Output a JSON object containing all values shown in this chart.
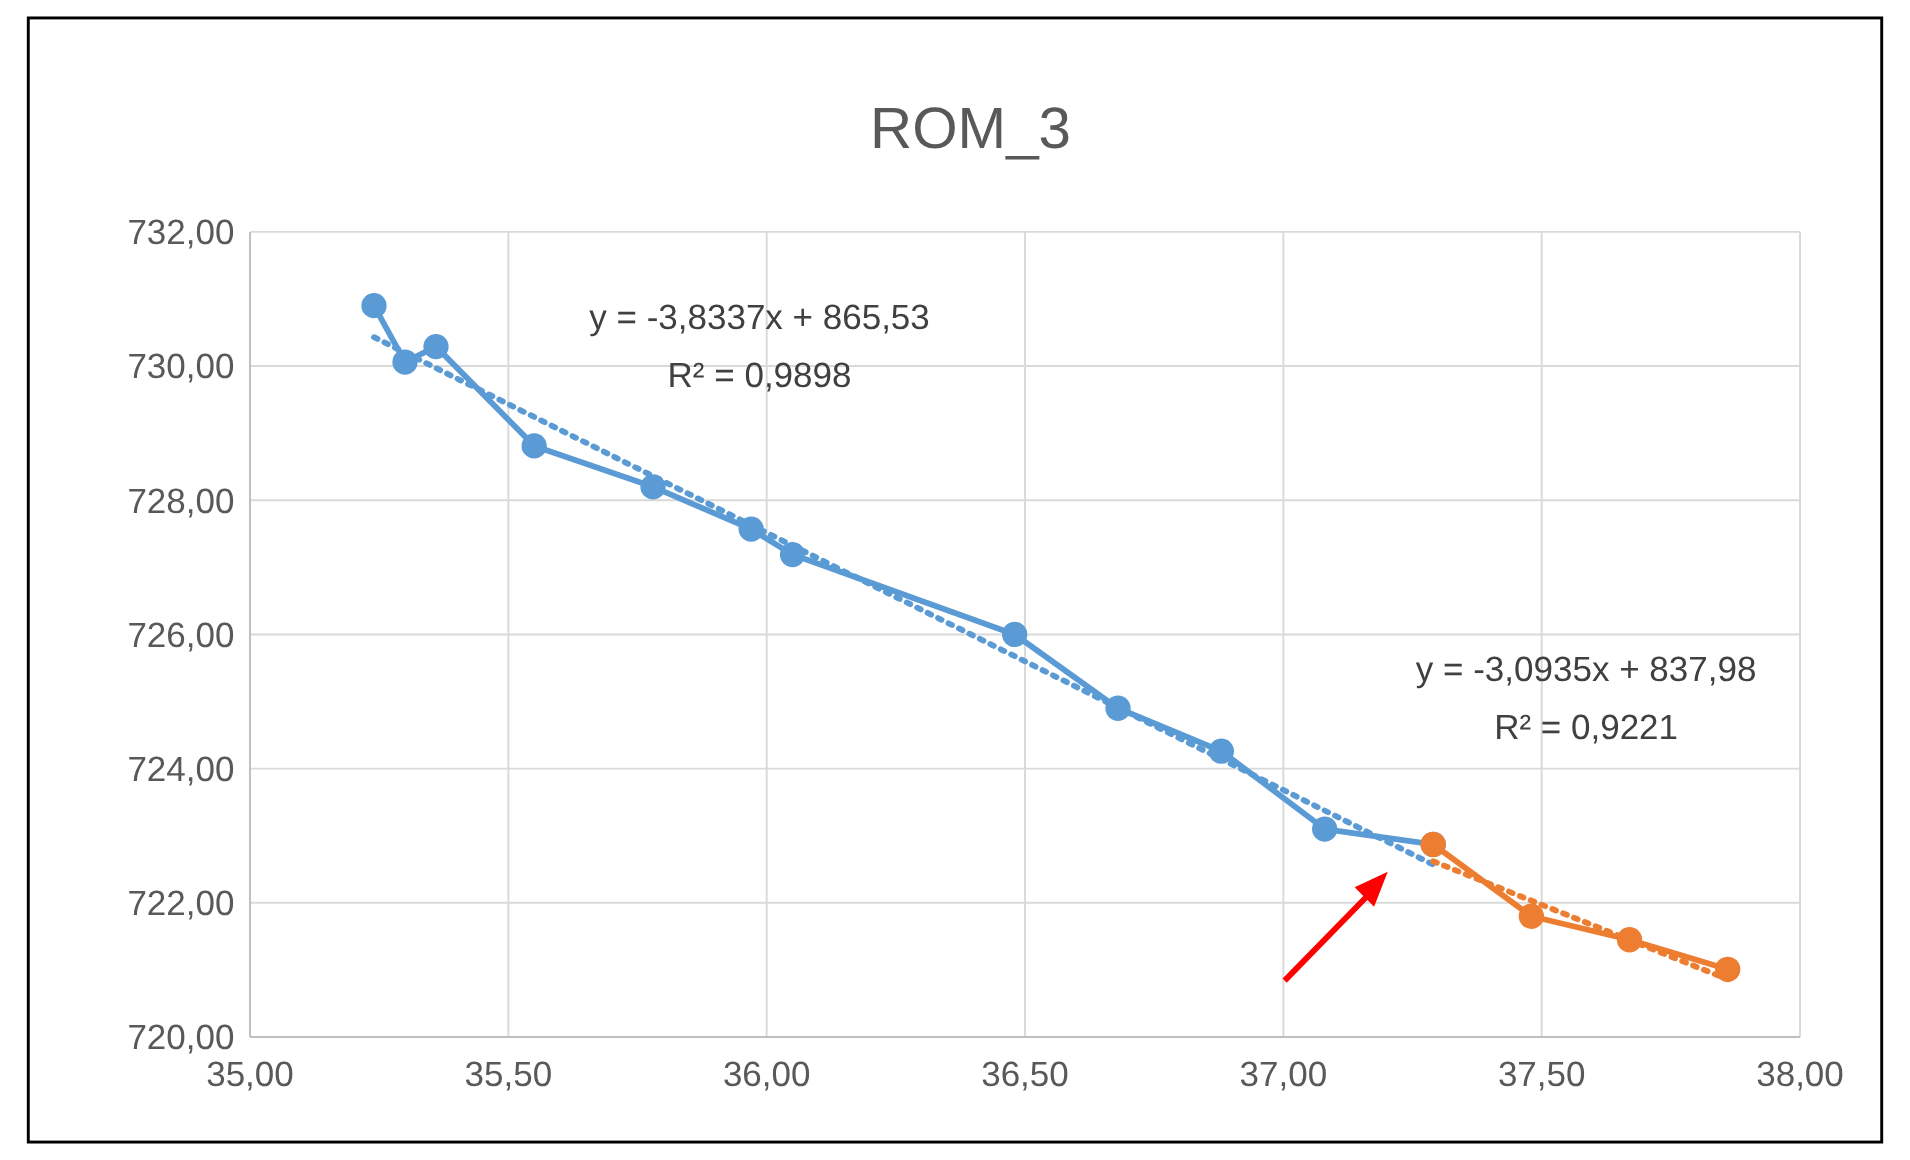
{
  "chart_data": {
    "type": "line",
    "title": "ROM_3",
    "xlim": [
      35,
      38
    ],
    "xticks": [
      {
        "value": 35,
        "label": "35,00"
      },
      {
        "value": 35.5,
        "label": "35,50"
      },
      {
        "value": 36,
        "label": "36,00"
      },
      {
        "value": 36.5,
        "label": "36,50"
      },
      {
        "value": 37,
        "label": "37,00"
      },
      {
        "value": 37.5,
        "label": "37,50"
      },
      {
        "value": 38,
        "label": "38,00"
      }
    ],
    "ylim": [
      720,
      732
    ],
    "yticks": [
      {
        "value": 720,
        "label": "720,00"
      },
      {
        "value": 722,
        "label": "722,00"
      },
      {
        "value": 724,
        "label": "724,00"
      },
      {
        "value": 726,
        "label": "726,00"
      },
      {
        "value": 728,
        "label": "728,00"
      },
      {
        "value": 730,
        "label": "730,00"
      },
      {
        "value": 732,
        "label": "732,00"
      }
    ],
    "grid": true,
    "series": [
      {
        "color": "#5b9bd5",
        "marker": "circle",
        "line_style": "solid",
        "x": [
          35.24,
          35.3,
          35.36,
          35.55,
          35.78,
          35.97,
          36.05,
          36.48,
          36.68,
          36.88,
          37.08,
          37.29
        ],
        "values": [
          730.9,
          730.06,
          730.29,
          728.81,
          728.2,
          727.57,
          727.19,
          726.0,
          724.9,
          724.26,
          723.1,
          722.87
        ]
      },
      {
        "color": "#ed7d31",
        "marker": "circle",
        "line_style": "solid",
        "x": [
          37.29,
          37.48,
          37.67,
          37.86
        ],
        "values": [
          722.87,
          721.8,
          721.45,
          721.01
        ]
      },
      {
        "color": "#5b9bd5",
        "marker": "none",
        "line_style": "dotted",
        "x": [
          35.24,
          37.29
        ],
        "values": [
          730.43,
          722.57
        ]
      },
      {
        "color": "#ed7d31",
        "marker": "none",
        "line_style": "dotted",
        "x": [
          37.29,
          37.86
        ],
        "values": [
          722.62,
          720.86
        ]
      }
    ],
    "annotations": [
      "y = -3,8337x + 865,53",
      "R² = 0,9898",
      "y = -3,0935x + 837,98",
      "R² = 0,9221"
    ]
  }
}
